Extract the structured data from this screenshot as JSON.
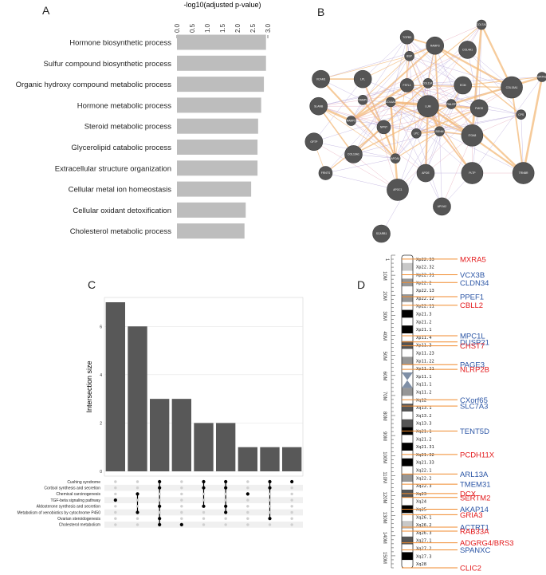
{
  "panels": {
    "a": "A",
    "b": "B",
    "c": "C",
    "d": "D"
  },
  "colors": {
    "bar_a": "#bdbdbd",
    "bar_c": "#585858",
    "node": "#555555",
    "edge_orange": "#f3b97a",
    "edge_purple": "#b7a7d9",
    "edge_pink": "#e6a7b7",
    "gene_red": "#e31a1c",
    "gene_blue": "#2b55a5",
    "marker": "#f08a2c",
    "dot_on": "#000000",
    "dot_off": "#cfcfcf"
  },
  "chart_data": [
    {
      "id": "A",
      "type": "bar",
      "orientation": "horizontal",
      "title": "-log10(adjusted p-value)",
      "xlim": [
        0,
        3.0
      ],
      "ticks": [
        "0.0",
        "0.5",
        "1.0",
        "1.5",
        "2.0",
        "2.5",
        "3.0"
      ],
      "categories": [
        "Hormone biosynthetic process",
        "Sulfur compound biosynthetic process",
        "Organic hydroxy compound metabolic process",
        "Hormone metabolic process",
        "Steroid metabolic process",
        "Glycerolipid catabolic process",
        "Extracellular structure organization",
        "Cellular metal ion homeostasis",
        "Cellular oxidant detoxification",
        "Cholesterol metabolic process"
      ],
      "values": [
        2.94,
        2.94,
        2.87,
        2.78,
        2.68,
        2.66,
        2.66,
        2.45,
        2.27,
        2.23
      ]
    },
    {
      "id": "B",
      "type": "network",
      "nodes": [
        {
          "id": "COL7A1",
          "x": 0.74,
          "y": 0.0,
          "s": "s"
        },
        {
          "id": "TGFB3",
          "x": 0.42,
          "y": 0.06,
          "s": "m"
        },
        {
          "id": "RAMP3",
          "x": 0.54,
          "y": 0.1,
          "s": "l"
        },
        {
          "id": "COL4A1",
          "x": 0.68,
          "y": 0.12,
          "s": "l"
        },
        {
          "id": "BSP",
          "x": 0.43,
          "y": 0.15,
          "s": "s"
        },
        {
          "id": "VCAM1",
          "x": 0.05,
          "y": 0.26,
          "s": "l"
        },
        {
          "id": "LPL",
          "x": 0.23,
          "y": 0.26,
          "s": "l"
        },
        {
          "id": "COL11A1",
          "x": 0.51,
          "y": 0.28,
          "s": "s"
        },
        {
          "id": "ECM",
          "x": 0.66,
          "y": 0.29,
          "s": "l"
        },
        {
          "id": "COL15A1",
          "x": 0.87,
          "y": 0.3,
          "s": "xl"
        },
        {
          "id": "MATN2",
          "x": 1.0,
          "y": 0.25,
          "s": "s"
        },
        {
          "id": "FSTL1",
          "x": 0.42,
          "y": 0.29,
          "s": "m"
        },
        {
          "id": "RAMP1",
          "x": 0.23,
          "y": 0.36,
          "s": "s"
        },
        {
          "id": "COL6A3",
          "x": 0.35,
          "y": 0.37,
          "s": "s"
        },
        {
          "id": "LUM",
          "x": 0.51,
          "y": 0.39,
          "s": "xl"
        },
        {
          "id": "PMLRP",
          "x": 0.61,
          "y": 0.38,
          "s": "s"
        },
        {
          "id": "FMOD",
          "x": 0.73,
          "y": 0.4,
          "s": "l"
        },
        {
          "id": "CPS",
          "x": 0.91,
          "y": 0.43,
          "s": "s"
        },
        {
          "id": "SLANB",
          "x": 0.04,
          "y": 0.39,
          "s": "l"
        },
        {
          "id": "RAMP2",
          "x": 0.18,
          "y": 0.46,
          "s": "s"
        },
        {
          "id": "NPNT",
          "x": 0.32,
          "y": 0.49,
          "s": "m"
        },
        {
          "id": "LPC",
          "x": 0.46,
          "y": 0.52,
          "s": "s"
        },
        {
          "id": "BDNM",
          "x": 0.56,
          "y": 0.51,
          "s": "s"
        },
        {
          "id": "ITGA8",
          "x": 0.7,
          "y": 0.53,
          "s": "xl"
        },
        {
          "id": "GFTP",
          "x": 0.02,
          "y": 0.56,
          "s": "l"
        },
        {
          "id": "COL10A1",
          "x": 0.19,
          "y": 0.62,
          "s": "l"
        },
        {
          "id": "APOA1",
          "x": 0.37,
          "y": 0.64,
          "s": "s"
        },
        {
          "id": "APOE",
          "x": 0.5,
          "y": 0.71,
          "s": "l"
        },
        {
          "id": "PLTP",
          "x": 0.7,
          "y": 0.71,
          "s": "xl"
        },
        {
          "id": "FRNTS",
          "x": 0.07,
          "y": 0.71,
          "s": "m"
        },
        {
          "id": "TRNBR",
          "x": 0.92,
          "y": 0.71,
          "s": "xl"
        },
        {
          "id": "APOC1",
          "x": 0.38,
          "y": 0.79,
          "s": "xl"
        },
        {
          "id": "APOA2",
          "x": 0.57,
          "y": 0.87,
          "s": "l"
        },
        {
          "id": "SCARB1",
          "x": 0.31,
          "y": 1.0,
          "s": "l"
        }
      ]
    },
    {
      "id": "C",
      "type": "upset",
      "ylabel": "Intersection size",
      "ylim": [
        0,
        7
      ],
      "yticks": [
        "0",
        "2",
        "4",
        "6"
      ],
      "values": [
        7,
        6,
        3,
        3,
        2,
        2,
        1,
        1,
        1
      ],
      "sets": [
        "Cushing syndrome",
        "Cortisol synthesis and secretion",
        "Chemical carcinogenesis",
        "TGF-beta signaling pathway",
        "Aldosterone synthesis and secretion",
        "Metabolism of xenobiotics by cytochrome P450",
        "Ovarian steroidogenesis",
        "Cholesterol metabolism"
      ],
      "membership": [
        [
          3
        ],
        [
          2,
          5
        ],
        [
          0,
          1,
          4,
          6,
          7
        ],
        [
          7
        ],
        [
          0,
          1,
          4
        ],
        [
          0,
          1,
          4,
          5
        ],
        [
          2
        ],
        [
          0,
          1,
          6
        ],
        [
          0
        ]
      ]
    },
    {
      "id": "D",
      "type": "ideogram",
      "chromosome": "X",
      "mb_ticks": [
        "10M",
        "20M",
        "30M",
        "40M",
        "50M",
        "60M",
        "70M",
        "80M",
        "90M",
        "100M",
        "110M",
        "120M",
        "130M",
        "140M",
        "150M"
      ],
      "first_tick": "1",
      "bands": [
        {
          "name": "Xp22.33",
          "g": "wht"
        },
        {
          "name": "Xp22.32",
          "g": "g25"
        },
        {
          "name": "Xp22.31",
          "g": "wht"
        },
        {
          "name": "Xp22.2",
          "g": "g50"
        },
        {
          "name": "Xp22.13",
          "g": "wht"
        },
        {
          "name": "Xp22.12",
          "g": "g50"
        },
        {
          "name": "Xp22.11",
          "g": "wht"
        },
        {
          "name": "Xp21.3",
          "g": "blk"
        },
        {
          "name": "Xp21.2",
          "g": "wht"
        },
        {
          "name": "Xp21.1",
          "g": "blk"
        },
        {
          "name": "Xp11.4",
          "g": "wht"
        },
        {
          "name": "Xp11.3",
          "g": "g75"
        },
        {
          "name": "Xp11.23",
          "g": "wht"
        },
        {
          "name": "Xp11.22",
          "g": "g50"
        },
        {
          "name": "Xp11.21",
          "g": "wht"
        },
        {
          "name": "Xp11.1",
          "g": "acen"
        },
        {
          "name": "Xq11.1",
          "g": "acen"
        },
        {
          "name": "Xq11.2",
          "g": "g50"
        },
        {
          "name": "Xq12",
          "g": "wht"
        },
        {
          "name": "Xq13.1",
          "g": "g75"
        },
        {
          "name": "Xq13.2",
          "g": "wht"
        },
        {
          "name": "Xq13.3",
          "g": "g75"
        },
        {
          "name": "Xq21.1",
          "g": "blk"
        },
        {
          "name": "Xq21.2",
          "g": "wht"
        },
        {
          "name": "Xq21.31",
          "g": "blk"
        },
        {
          "name": "Xq21.32",
          "g": "wht"
        },
        {
          "name": "Xq21.33",
          "g": "blk"
        },
        {
          "name": "Xq22.1",
          "g": "wht"
        },
        {
          "name": "Xq22.2",
          "g": "g50"
        },
        {
          "name": "Xq22.3",
          "g": "wht"
        },
        {
          "name": "Xq23",
          "g": "g75"
        },
        {
          "name": "Xq24",
          "g": "wht"
        },
        {
          "name": "Xq25",
          "g": "blk"
        },
        {
          "name": "Xq26.1",
          "g": "wht"
        },
        {
          "name": "Xq26.2",
          "g": "g25"
        },
        {
          "name": "Xq26.3",
          "g": "wht"
        },
        {
          "name": "Xq27.1",
          "g": "g75"
        },
        {
          "name": "Xq27.2",
          "g": "wht"
        },
        {
          "name": "Xq27.3",
          "g": "blk"
        },
        {
          "name": "Xq28",
          "g": "wht"
        }
      ],
      "genes": [
        {
          "name": "MXRA5",
          "color": "red",
          "pos": 0.5
        },
        {
          "name": "VCX3B",
          "color": "blue",
          "pos": 2.5
        },
        {
          "name": "CLDN34",
          "color": "blue",
          "pos": 3.5
        },
        {
          "name": "PPEF1",
          "color": "blue",
          "pos": 5.3
        },
        {
          "name": "CBLL2",
          "color": "red",
          "pos": 6.4
        },
        {
          "name": "MPC1L",
          "color": "blue",
          "pos": 10.3
        },
        {
          "name": "DUSP21",
          "color": "blue",
          "pos": 11.1
        },
        {
          "name": "CHST7",
          "color": "red",
          "pos": 11.6
        },
        {
          "name": "PAGE3",
          "color": "blue",
          "pos": 14.0
        },
        {
          "name": "NLRP2B",
          "color": "red",
          "pos": 14.6
        },
        {
          "name": "CXorf65",
          "color": "blue",
          "pos": 18.5
        },
        {
          "name": "SLC7A3",
          "color": "blue",
          "pos": 19.3
        },
        {
          "name": "TENT5D",
          "color": "blue",
          "pos": 22.5
        },
        {
          "name": "PCDH11X",
          "color": "red",
          "pos": 25.5
        },
        {
          "name": "ARL13A",
          "color": "blue",
          "pos": 28.0
        },
        {
          "name": "TMEM31",
          "color": "blue",
          "pos": 29.3
        },
        {
          "name": "DCX",
          "color": "red",
          "pos": 30.5
        },
        {
          "name": "SERTM2",
          "color": "red",
          "pos": 31.0
        },
        {
          "name": "AKAP14",
          "color": "blue",
          "pos": 32.5
        },
        {
          "name": "GRIA3",
          "color": "red",
          "pos": 33.2
        },
        {
          "name": "ACTRT1",
          "color": "blue",
          "pos": 34.8
        },
        {
          "name": "RAB33A",
          "color": "red",
          "pos": 35.3
        },
        {
          "name": "ADGRG4/BRS3",
          "color": "red",
          "pos": 36.8
        },
        {
          "name": "SPANXC",
          "color": "blue",
          "pos": 37.7
        },
        {
          "name": "CLIC2",
          "color": "red",
          "pos": 40.0
        }
      ]
    }
  ]
}
